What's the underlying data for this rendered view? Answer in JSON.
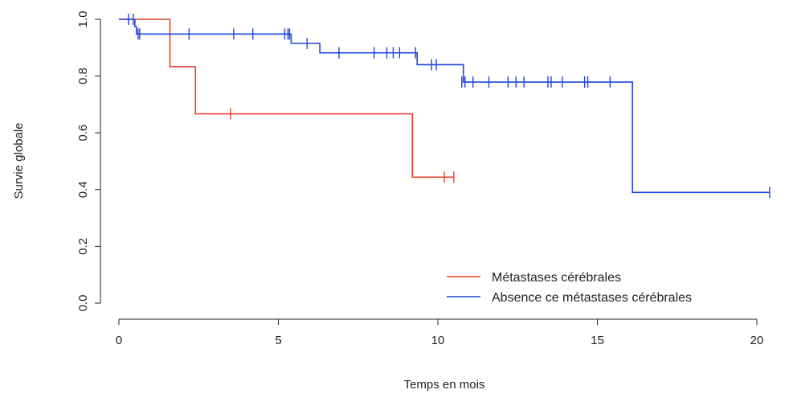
{
  "chart_data": {
    "type": "line",
    "title": "",
    "xlabel": "Temps en mois",
    "ylabel": "Survie globale",
    "xlim": [
      0,
      20.5
    ],
    "ylim": [
      0,
      1
    ],
    "xticks": [
      "0",
      "5",
      "10",
      "15",
      "20"
    ],
    "yticks": [
      "0.0",
      "0.2",
      "0.4",
      "0.6",
      "0.8",
      "1.0"
    ],
    "grid": false,
    "legend_position": "bottom-right",
    "series": [
      {
        "name": "Métastases cérébrales",
        "color": "#e8402a",
        "steps": [
          [
            0,
            1.0
          ],
          [
            1.6,
            0.833
          ],
          [
            2.4,
            0.667
          ],
          [
            9.2,
            0.444
          ],
          [
            10.5,
            0.444
          ]
        ],
        "censored": [
          [
            3.5,
            0.667
          ],
          [
            10.2,
            0.444
          ],
          [
            10.5,
            0.444
          ]
        ]
      },
      {
        "name": "Absence ce métastases cérébrales",
        "color": "#2244dd",
        "steps": [
          [
            0,
            1.0
          ],
          [
            0.5,
            0.974
          ],
          [
            0.55,
            0.948
          ],
          [
            5.4,
            0.915
          ],
          [
            6.3,
            0.882
          ],
          [
            9.35,
            0.84
          ],
          [
            10.8,
            0.779
          ],
          [
            16.1,
            0.39
          ],
          [
            20.4,
            0.39
          ]
        ],
        "censored": [
          [
            0.3,
            1.0
          ],
          [
            0.45,
            1.0
          ],
          [
            0.6,
            0.948
          ],
          [
            0.65,
            0.948
          ],
          [
            2.2,
            0.948
          ],
          [
            3.6,
            0.948
          ],
          [
            4.2,
            0.948
          ],
          [
            5.2,
            0.948
          ],
          [
            5.3,
            0.948
          ],
          [
            5.35,
            0.948
          ],
          [
            5.9,
            0.915
          ],
          [
            6.9,
            0.882
          ],
          [
            8.0,
            0.882
          ],
          [
            8.4,
            0.882
          ],
          [
            8.6,
            0.882
          ],
          [
            8.8,
            0.882
          ],
          [
            9.3,
            0.882
          ],
          [
            9.8,
            0.84
          ],
          [
            9.95,
            0.84
          ],
          [
            10.75,
            0.779
          ],
          [
            10.85,
            0.779
          ],
          [
            11.1,
            0.779
          ],
          [
            11.6,
            0.779
          ],
          [
            12.2,
            0.779
          ],
          [
            12.45,
            0.779
          ],
          [
            12.7,
            0.779
          ],
          [
            13.45,
            0.779
          ],
          [
            13.55,
            0.779
          ],
          [
            13.9,
            0.779
          ],
          [
            14.6,
            0.779
          ],
          [
            14.7,
            0.779
          ],
          [
            15.4,
            0.779
          ],
          [
            20.4,
            0.39
          ]
        ]
      }
    ]
  }
}
